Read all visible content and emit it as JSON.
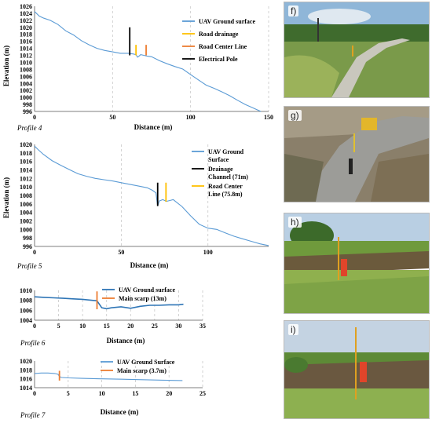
{
  "chart_data": [
    {
      "id": "p4",
      "type": "line",
      "profile_label": "Profile 4",
      "xlabel": "Distance (m)",
      "ylabel": "Elevation (m)",
      "xlim": [
        0,
        150
      ],
      "ylim": [
        996,
        1026
      ],
      "xticks": [
        0,
        50,
        100,
        150
      ],
      "yticks": [
        996,
        998,
        1000,
        1002,
        1004,
        1006,
        1008,
        1010,
        1012,
        1014,
        1016,
        1018,
        1020,
        1022,
        1024,
        1026
      ],
      "grid": "vertical dashed",
      "legend_position": "right",
      "series": [
        {
          "name": "UAV Ground surface",
          "color": "#5b9bd5",
          "x": [
            0,
            3,
            6,
            10,
            15,
            20,
            25,
            30,
            35,
            40,
            45,
            50,
            55,
            60,
            63,
            65,
            66,
            67,
            68,
            70,
            72,
            75,
            80,
            85,
            90,
            95,
            100,
            105,
            110,
            115,
            120,
            125,
            130,
            135,
            140,
            145
          ],
          "y": [
            1024.5,
            1023.2,
            1022.6,
            1022.0,
            1020.8,
            1019.0,
            1017.8,
            1016.2,
            1015.0,
            1014.0,
            1013.4,
            1013.0,
            1012.6,
            1012.6,
            1012.4,
            1012.2,
            1011.5,
            1011.8,
            1012.2,
            1012.0,
            1011.8,
            1011.6,
            1010.5,
            1009.6,
            1008.8,
            1008.1,
            1006.5,
            1005.0,
            1003.5,
            1002.6,
            1001.6,
            1000.5,
            999.2,
            998.0,
            997.0,
            996.0
          ]
        }
      ],
      "markers": [
        {
          "name": "Road drainage",
          "color": "#ffc000",
          "x": 65,
          "y0": 1012,
          "y1": 1015
        },
        {
          "name": "Road Center Line",
          "color": "#ed7d31",
          "x": 71.5,
          "y0": 1012,
          "y1": 1015
        },
        {
          "name": "Electrical Pole",
          "color": "#000000",
          "x": 61,
          "y0": 1012,
          "y1": 1020
        }
      ]
    },
    {
      "id": "p5",
      "type": "line",
      "profile_label": "Profile 5",
      "xlabel": "Distance (m)",
      "ylabel": "Elevation (m)",
      "xlim": [
        0,
        135
      ],
      "ylim": [
        996,
        1020
      ],
      "xticks": [
        0,
        50,
        100
      ],
      "yticks": [
        996,
        998,
        1000,
        1002,
        1004,
        1006,
        1008,
        1010,
        1012,
        1014,
        1016,
        1018,
        1020
      ],
      "grid": "vertical dashed",
      "legend_position": "right",
      "series": [
        {
          "name": "UAV Ground Surface",
          "color": "#5b9bd5",
          "x": [
            0,
            2,
            5,
            10,
            15,
            20,
            25,
            30,
            35,
            40,
            45,
            50,
            55,
            60,
            65,
            68,
            70,
            71,
            72,
            74,
            76,
            78,
            80,
            85,
            90,
            95,
            100,
            105,
            110,
            115,
            120,
            125,
            130,
            135
          ],
          "y": [
            1019.6,
            1018.8,
            1017.7,
            1016.2,
            1015.1,
            1014.1,
            1013.1,
            1012.5,
            1012.0,
            1011.7,
            1011.4,
            1011.0,
            1010.6,
            1010.2,
            1009.8,
            1009.2,
            1008.6,
            1005.5,
            1006.7,
            1007.0,
            1006.6,
            1006.8,
            1007.0,
            1005.4,
            1003.2,
            1001.2,
            1000.3,
            1000.0,
            999.2,
            998.4,
            997.8,
            997.2,
            996.6,
            996.2
          ]
        }
      ],
      "markers": [
        {
          "name": "Drainage Channel (71m)",
          "color": "#000000",
          "x": 71,
          "y0": 1005.5,
          "y1": 1011
        },
        {
          "name": "Road Center Line (75.8m)",
          "color": "#ffc000",
          "x": 75.8,
          "y0": 1006.5,
          "y1": 1011
        }
      ]
    },
    {
      "id": "p6",
      "type": "line",
      "profile_label": "Profile 6",
      "xlabel": "Distance (m)",
      "xlim": [
        0,
        35
      ],
      "ylim": [
        1004,
        1010
      ],
      "xticks": [
        0,
        5,
        10,
        15,
        20,
        25,
        30,
        35
      ],
      "yticks": [
        1004,
        1006,
        1008,
        1010
      ],
      "grid": "vertical dashed",
      "legend_position": "top-right",
      "series": [
        {
          "name": "UAV Ground surface",
          "color": "#2e75b6",
          "x": [
            0,
            2,
            4,
            6,
            8,
            10,
            12,
            13,
            13.5,
            14,
            15,
            16,
            18,
            20,
            22,
            24,
            26,
            28,
            30,
            31
          ],
          "y": [
            1008.7,
            1008.6,
            1008.5,
            1008.4,
            1008.3,
            1008.2,
            1008.0,
            1007.9,
            1007.2,
            1006.5,
            1006.3,
            1006.5,
            1006.7,
            1006.4,
            1006.8,
            1007.0,
            1007.0,
            1007.1,
            1007.1,
            1007.2
          ]
        }
      ],
      "markers": [
        {
          "name": "Main scarp (13m)",
          "color": "#ed7d31",
          "x": 13,
          "y0": 1006.2,
          "y1": 1009.8
        }
      ]
    },
    {
      "id": "p7",
      "type": "line",
      "profile_label": "Profile 7",
      "xlabel": "Distance (m)",
      "xlim": [
        0,
        25
      ],
      "ylim": [
        1014,
        1020
      ],
      "xticks": [
        0,
        5,
        10,
        15,
        20,
        25
      ],
      "yticks": [
        1014,
        1016,
        1018,
        1020
      ],
      "grid": "vertical dashed",
      "legend_position": "top-right",
      "series": [
        {
          "name": "UAV Ground Surface",
          "color": "#5b9bd5",
          "x": [
            0,
            1,
            2,
            3,
            3.5,
            3.7,
            4,
            5,
            7,
            10,
            13,
            16,
            19,
            22
          ],
          "y": [
            1017.2,
            1017.3,
            1017.3,
            1017.2,
            1017.0,
            1016.5,
            1016.3,
            1016.2,
            1016.1,
            1016.0,
            1015.9,
            1015.8,
            1015.7,
            1015.6
          ]
        }
      ],
      "markers": [
        {
          "name": "Main scarp (3.7m)",
          "color": "#ed7d31",
          "x": 3.7,
          "y0": 1015.6,
          "y1": 1017.8
        }
      ]
    }
  ],
  "photos": [
    {
      "id": "f",
      "label": "f)"
    },
    {
      "id": "g",
      "label": "g)"
    },
    {
      "id": "h",
      "label": "h)"
    },
    {
      "id": "i",
      "label": "i)"
    }
  ]
}
